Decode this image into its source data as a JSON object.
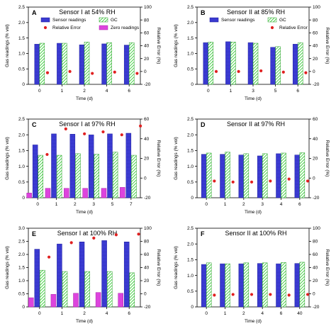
{
  "colors": {
    "sensor_readings": "#3b3bd6",
    "gc": "#33cc33",
    "relative_error": "#e02020",
    "zero_readings": "#dd44dd"
  },
  "legend": {
    "sensor_readings": "Sensor readings",
    "gc": "GC",
    "relative_error": "Relative Error",
    "zero_readings": "Zero readings"
  },
  "chart_data": [
    {
      "type": "bar",
      "letter": "A",
      "title": "Sensor I at 54% RH",
      "xlabel": "Time (d)",
      "ylabel": "Gas readings (% vol)",
      "y2label": "Relative Error (%)",
      "categories": [
        "0",
        "1",
        "2",
        "4",
        "6"
      ],
      "ylim": [
        0,
        2.5
      ],
      "y2lim": [
        -20,
        100
      ],
      "yticks": [
        "0",
        "0.5",
        "1.0",
        "1.5",
        "2.0",
        "2.5"
      ],
      "y2ticks": [
        "-20",
        "0",
        "20",
        "40",
        "60",
        "80",
        "100"
      ],
      "legend_entries": [
        "sensor_readings",
        "gc",
        "relative_error",
        "zero_readings"
      ],
      "series": [
        {
          "key": "sensor_readings",
          "name": "Sensor readings",
          "values": [
            1.3,
            1.33,
            1.28,
            1.31,
            1.27
          ]
        },
        {
          "key": "gc",
          "name": "GC",
          "values": [
            1.33,
            1.33,
            1.37,
            1.35,
            1.35
          ]
        },
        {
          "key": "relative_error",
          "name": "Relative Error",
          "axis": "y2",
          "values": [
            -2,
            0,
            -3,
            -1,
            -3
          ]
        }
      ]
    },
    {
      "type": "bar",
      "letter": "B",
      "title": "Sensor II at 85% RH",
      "xlabel": "Time (d)",
      "ylabel": "Gas readings (% vol)",
      "y2label": "Relative Error (%)",
      "categories": [
        "0",
        "1",
        "3",
        "5",
        "6"
      ],
      "ylim": [
        0,
        2.5
      ],
      "y2lim": [
        -20,
        100
      ],
      "yticks": [
        "0",
        "0.5",
        "1.0",
        "1.5",
        "2.0",
        "2.5"
      ],
      "y2ticks": [
        "-20",
        "0",
        "20",
        "40",
        "60",
        "80",
        "100"
      ],
      "legend_entries": [
        "sensor_readings",
        "gc",
        "relative_error"
      ],
      "series": [
        {
          "key": "sensor_readings",
          "name": "Sensor readings",
          "values": [
            1.35,
            1.38,
            1.35,
            1.2,
            1.3
          ]
        },
        {
          "key": "gc",
          "name": "GC",
          "values": [
            1.37,
            1.37,
            1.33,
            1.22,
            1.35
          ]
        },
        {
          "key": "relative_error",
          "name": "Relative Error",
          "axis": "y2",
          "values": [
            0,
            0,
            1,
            -1,
            -2
          ]
        }
      ]
    },
    {
      "type": "bar",
      "letter": "C",
      "title": "Sensor I at 97% RH",
      "xlabel": "Time (d)",
      "ylabel": "Gas readings (% vol)",
      "y2label": "Relative Error (%)",
      "categories": [
        "0",
        "1",
        "2",
        "3",
        "5",
        "7"
      ],
      "ylim": [
        0,
        2.5
      ],
      "y2lim": [
        -20,
        60
      ],
      "yticks": [
        "0",
        "0.5",
        "1.0",
        "1.5",
        "2.0",
        "2.5"
      ],
      "y2ticks": [
        "-20",
        "0",
        "20",
        "40",
        "60"
      ],
      "legend_entries": [],
      "series": [
        {
          "key": "sensor_readings",
          "name": "Sensor readings",
          "values": [
            1.68,
            2.03,
            2.02,
            2.0,
            2.03,
            2.05
          ]
        },
        {
          "key": "gc",
          "name": "GC",
          "values": [
            1.35,
            1.35,
            1.4,
            1.38,
            1.45,
            1.35
          ]
        },
        {
          "key": "zero_readings",
          "name": "Zero readings",
          "values": [
            0.15,
            0.3,
            0.3,
            0.3,
            0.3,
            0.33
          ]
        },
        {
          "key": "relative_error",
          "name": "Relative Error",
          "axis": "y2",
          "values": [
            24,
            50,
            45,
            47,
            44,
            53
          ]
        }
      ]
    },
    {
      "type": "bar",
      "letter": "D",
      "title": "Sensor II at 97% RH",
      "xlabel": "Time (d)",
      "ylabel": "Gas readings (% vol)",
      "y2label": "Relative Error (%)",
      "categories": [
        "0",
        "1",
        "2",
        "3",
        "4",
        "6"
      ],
      "ylim": [
        0,
        2.5
      ],
      "y2lim": [
        -20,
        60
      ],
      "yticks": [
        "0",
        "0.5",
        "1.0",
        "1.5",
        "2.0",
        "2.5"
      ],
      "y2ticks": [
        "-20",
        "0",
        "20",
        "40",
        "60"
      ],
      "legend_entries": [],
      "series": [
        {
          "key": "sensor_readings",
          "name": "Sensor readings",
          "values": [
            1.38,
            1.38,
            1.36,
            1.33,
            1.4,
            1.36
          ]
        },
        {
          "key": "gc",
          "name": "GC",
          "values": [
            1.42,
            1.45,
            1.4,
            1.4,
            1.42,
            1.43
          ]
        },
        {
          "key": "relative_error",
          "name": "Relative Error",
          "axis": "y2",
          "values": [
            -3,
            -4,
            -4,
            -3,
            -1,
            -3
          ]
        }
      ]
    },
    {
      "type": "bar",
      "letter": "E",
      "title": "Sensor I at 100% RH",
      "xlabel": "Time (d)",
      "ylabel": "Gas readings (% vol)",
      "y2label": "Relative Error (%)",
      "categories": [
        "0",
        "1",
        "2",
        "4",
        "6"
      ],
      "ylim": [
        0,
        3.0
      ],
      "y2lim": [
        -20,
        100
      ],
      "yticks": [
        "0",
        "0.5",
        "1.0",
        "1.5",
        "2.0",
        "2.5",
        "3.0"
      ],
      "y2ticks": [
        "-20",
        "0",
        "20",
        "40",
        "60",
        "80",
        "100"
      ],
      "legend_entries": [],
      "series": [
        {
          "key": "sensor_readings",
          "name": "Sensor readings",
          "values": [
            2.2,
            2.4,
            2.48,
            2.53,
            2.48
          ]
        },
        {
          "key": "gc",
          "name": "GC",
          "values": [
            1.4,
            1.35,
            1.35,
            1.35,
            1.3
          ]
        },
        {
          "key": "zero_readings",
          "name": "Zero readings",
          "values": [
            0.35,
            0.48,
            0.52,
            0.55,
            0.52
          ]
        },
        {
          "key": "relative_error",
          "name": "Relative Error",
          "axis": "y2",
          "values": [
            56,
            78,
            85,
            90,
            91
          ]
        }
      ]
    },
    {
      "type": "bar",
      "letter": "F",
      "title": "Sensor II at 100% RH",
      "xlabel": "Time (d)",
      "ylabel": "Gas readings (% vol)",
      "y2label": "Relative Error (%)",
      "categories": [
        "0",
        "1",
        "2",
        "4",
        "6",
        "40"
      ],
      "ylim": [
        0,
        2.5
      ],
      "y2lim": [
        -20,
        100
      ],
      "yticks": [
        "0",
        "0.5",
        "1.0",
        "1.5",
        "2.0",
        "2.5"
      ],
      "y2ticks": [
        "-20",
        "0",
        "20",
        "40",
        "60",
        "80",
        "100"
      ],
      "legend_entries": [],
      "series": [
        {
          "key": "sensor_readings",
          "name": "Sensor readings",
          "values": [
            1.35,
            1.37,
            1.37,
            1.38,
            1.37,
            1.38
          ]
        },
        {
          "key": "gc",
          "name": "GC",
          "values": [
            1.4,
            1.37,
            1.4,
            1.4,
            1.41,
            1.42
          ]
        },
        {
          "key": "relative_error",
          "name": "Relative Error",
          "axis": "y2",
          "values": [
            -2,
            -1,
            -1,
            -1,
            -2,
            -1
          ]
        }
      ]
    }
  ]
}
